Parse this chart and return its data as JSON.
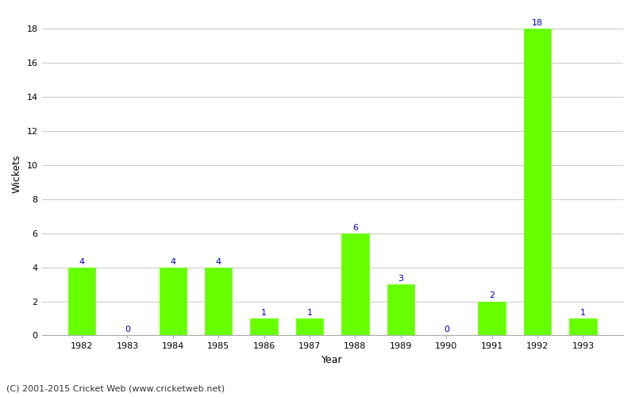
{
  "years": [
    1982,
    1983,
    1984,
    1985,
    1986,
    1987,
    1988,
    1989,
    1990,
    1991,
    1992,
    1993
  ],
  "wickets": [
    4,
    0,
    4,
    4,
    1,
    1,
    6,
    3,
    0,
    2,
    18,
    1
  ],
  "bar_color": "#66ff00",
  "bar_edge_color": "#66ff00",
  "xlabel": "Year",
  "ylabel": "Wickets",
  "ylim": [
    0,
    19
  ],
  "yticks": [
    0,
    2,
    4,
    6,
    8,
    10,
    12,
    14,
    16,
    18
  ],
  "label_color": "#0000cc",
  "label_fontsize": 8,
  "tick_fontsize": 8,
  "xlabel_fontsize": 9,
  "ylabel_fontsize": 9,
  "background_color": "#ffffff",
  "grid_color": "#cccccc",
  "footer_text": "(C) 2001-2015 Cricket Web (www.cricketweb.net)",
  "footer_fontsize": 8,
  "footer_color": "#333333",
  "bar_width": 0.6
}
